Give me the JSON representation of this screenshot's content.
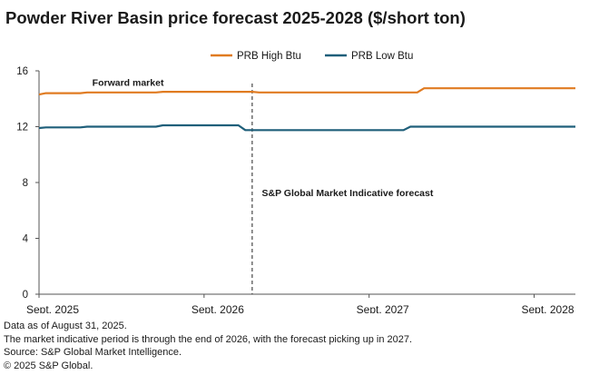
{
  "chart_data": {
    "type": "line",
    "title": "Powder River Basin price forecast 2025-2028 ($/short ton)",
    "xlabel": "",
    "ylabel": "",
    "ylim": [
      0,
      16
    ],
    "yticks": [
      0,
      4,
      8,
      12,
      16
    ],
    "xlim": [
      0,
      39
    ],
    "xticks": [
      {
        "x": 0,
        "label": "Sept. 2025"
      },
      {
        "x": 12,
        "label": "Sept. 2026"
      },
      {
        "x": 24,
        "label": "Sept. 2027"
      },
      {
        "x": 36,
        "label": "Sept. 2028"
      }
    ],
    "x_unit": "months since Sept. 2025",
    "series": [
      {
        "name": "PRB High Btu",
        "color": "#e07b21",
        "points": [
          [
            0,
            14.3
          ],
          [
            0.5,
            14.4
          ],
          [
            3,
            14.4
          ],
          [
            3.5,
            14.45
          ],
          [
            8.5,
            14.45
          ],
          [
            9,
            14.5
          ],
          [
            15.5,
            14.5
          ],
          [
            16,
            14.45
          ],
          [
            27.5,
            14.45
          ],
          [
            28,
            14.75
          ],
          [
            39,
            14.75
          ]
        ]
      },
      {
        "name": "PRB Low Btu",
        "color": "#1f5f7a",
        "points": [
          [
            0,
            11.9
          ],
          [
            0.5,
            11.95
          ],
          [
            3,
            11.95
          ],
          [
            3.5,
            12.0
          ],
          [
            8.5,
            12.0
          ],
          [
            9,
            12.1
          ],
          [
            14.5,
            12.1
          ],
          [
            15,
            11.75
          ],
          [
            26.5,
            11.75
          ],
          [
            27,
            12.0
          ],
          [
            39,
            12.0
          ]
        ]
      }
    ],
    "divider": {
      "x": 15.5,
      "label": "S&P Global Market Indicative forecast"
    },
    "annotations": [
      {
        "text": "Forward market",
        "x": 7,
        "y": 15.2
      },
      {
        "text": "S&P Global Market Indicative forecast",
        "x": 16.2,
        "y": 7.3
      }
    ],
    "legend_position": "top-center",
    "grid": false
  },
  "notes": [
    "Data as of August 31, 2025.",
    "The market indicative period is through the end of 2026, with the forecast picking up in 2027.",
    "Source: S&P Global Market Intelligence.",
    "© 2025 S&P Global."
  ]
}
